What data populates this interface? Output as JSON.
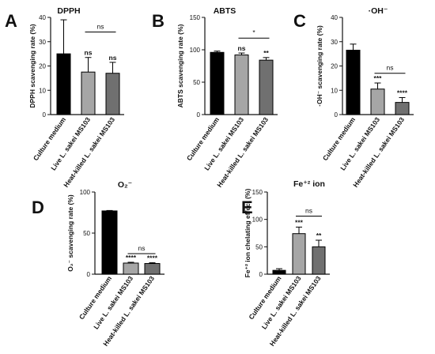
{
  "colors": {
    "medium": "#000000",
    "live": "#a6a6a6",
    "heat": "#707070",
    "axis": "#111111"
  },
  "chart_data": [
    {
      "type": "bar",
      "panel": "A",
      "title": "DPPH",
      "ylabel": "DPPH scavenging rate (%)",
      "ylim": [
        0,
        40
      ],
      "yticks": [
        0,
        10,
        20,
        30,
        40
      ],
      "categories": [
        "Culture medium",
        "Live L. sakei MS103",
        "Heat-killed L. sakei MS103"
      ],
      "values": [
        25,
        17.5,
        17
      ],
      "errors": [
        14,
        6,
        4.5
      ],
      "bar_labels": [
        "",
        "ns",
        "ns"
      ],
      "bracket": {
        "label": "ns",
        "from": 1,
        "to": 2,
        "y": 34
      }
    },
    {
      "type": "bar",
      "panel": "B",
      "title": "ABTS",
      "ylabel": "ABTS scavenging rate (%)",
      "ylim": [
        0,
        150
      ],
      "yticks": [
        0,
        50,
        100,
        150
      ],
      "categories": [
        "Culture medium",
        "Live L. sakei MS103",
        "Heat-killed L. sakei MS103"
      ],
      "values": [
        96,
        92,
        84
      ],
      "errors": [
        2,
        3,
        4
      ],
      "bar_labels": [
        "",
        "ns",
        "**"
      ],
      "bracket": {
        "label": "*",
        "from": 1,
        "to": 2,
        "y": 118
      }
    },
    {
      "type": "bar",
      "panel": "C",
      "title": "·OH⁻",
      "ylabel": "·OH⁻ scavenging rate (%)",
      "ylim": [
        0,
        40
      ],
      "yticks": [
        0,
        10,
        20,
        30,
        40
      ],
      "categories": [
        "Culture medium",
        "Live L. sakei MS103",
        "Heat-killed L. sakei MS103"
      ],
      "values": [
        26.5,
        10.5,
        5
      ],
      "errors": [
        2.5,
        2.5,
        2
      ],
      "bar_labels": [
        "",
        "***",
        "****"
      ],
      "bracket": {
        "label": "ns",
        "from": 1,
        "to": 2,
        "y": 17
      }
    },
    {
      "type": "bar",
      "panel": "D",
      "title": "O₂⁻",
      "ylabel": "O₂⁻ scavenging rate (%)",
      "ylim": [
        0,
        100
      ],
      "yticks": [
        0,
        50,
        100
      ],
      "categories": [
        "Culture medium",
        "Live L. sakei MS103",
        "Heat-killed L. sakei MS103"
      ],
      "values": [
        77,
        13.5,
        13
      ],
      "errors": [
        0.5,
        1,
        1
      ],
      "bar_labels": [
        "",
        "****",
        "****"
      ],
      "bracket": {
        "label": "ns",
        "from": 1,
        "to": 2,
        "y": 25
      }
    },
    {
      "type": "bar",
      "panel": "E",
      "title": "Fe⁺² ion",
      "ylabel": "Fe⁺² ion chelating effect (%)",
      "ylim": [
        0,
        150
      ],
      "yticks": [
        0,
        50,
        100,
        150
      ],
      "categories": [
        "Culture medium",
        "Live L. sakei MS103",
        "Heat-killed L. sakei MS103"
      ],
      "values": [
        7,
        74,
        50
      ],
      "errors": [
        3,
        12,
        12
      ],
      "bar_labels": [
        "",
        "***",
        "**"
      ],
      "bracket": {
        "label": "ns",
        "from": 1,
        "to": 2,
        "y": 106
      }
    }
  ]
}
